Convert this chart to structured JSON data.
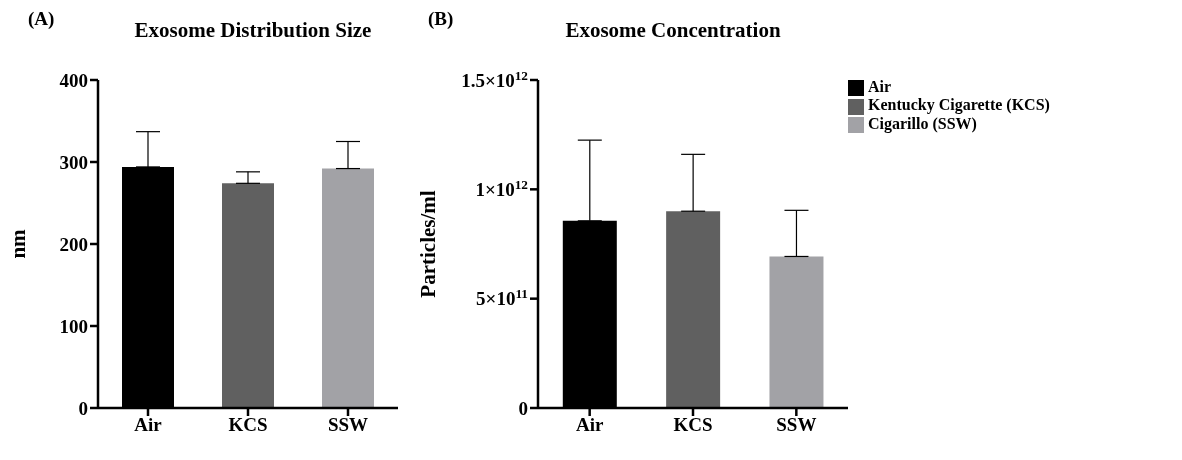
{
  "chart_data": [
    {
      "type": "bar",
      "title": "Exosome Distribution Size",
      "annotations": [
        "(A)"
      ],
      "ylabel": "nm",
      "categories": [
        "Air",
        "KCS",
        "SSW"
      ],
      "stacked": true,
      "series": [
        {
          "color": "#000000",
          "values": [
            294,
            null,
            null
          ],
          "errors": [
            [
              294,
              337
            ],
            null,
            null
          ]
        },
        {
          "color": "#606060",
          "values": [
            null,
            274,
            null
          ],
          "errors": [
            null,
            [
              274,
              288
            ],
            null
          ]
        },
        {
          "color": "#a2a2a6",
          "values": [
            null,
            null,
            292
          ],
          "errors": [
            null,
            null,
            [
              292,
              325
            ]
          ]
        }
      ],
      "ylim": [
        0,
        400
      ],
      "yticks": [
        0,
        100,
        200,
        300,
        400
      ]
    },
    {
      "type": "bar",
      "title": "Exosome Concentration",
      "annotations": [
        "(B)"
      ],
      "ylabel": "Particles/ml",
      "categories": [
        "Air",
        "KCS",
        "SSW"
      ],
      "stacked": true,
      "series": [
        {
          "name": "Air",
          "color": "#000000",
          "values": [
            856000000000,
            null,
            null
          ],
          "errors": [
            [
              856000000000,
              1225000000000
            ],
            null,
            null
          ]
        },
        {
          "name": "Kentucky Cigarette (KCS)",
          "color": "#606060",
          "values": [
            null,
            900000000000,
            null
          ],
          "errors": [
            null,
            [
              900000000000,
              1160000000000
            ],
            null
          ]
        },
        {
          "name": "Cigarillo (SSW)",
          "color": "#a2a2a6",
          "values": [
            null,
            null,
            693000000000
          ],
          "errors": [
            null,
            null,
            [
              693000000000,
              904000000000
            ]
          ]
        }
      ],
      "ylim": [
        0,
        1500000000000
      ],
      "yticks": [
        0,
        {
          "value": 500000000000,
          "label": "5×10$^{11}$"
        },
        {
          "value": 1000000000000,
          "label": "1×10$^{12}$"
        },
        {
          "value": 1500000000000,
          "label": "1.5×10$^{12}$"
        }
      ],
      "legend": "top right"
    }
  ]
}
